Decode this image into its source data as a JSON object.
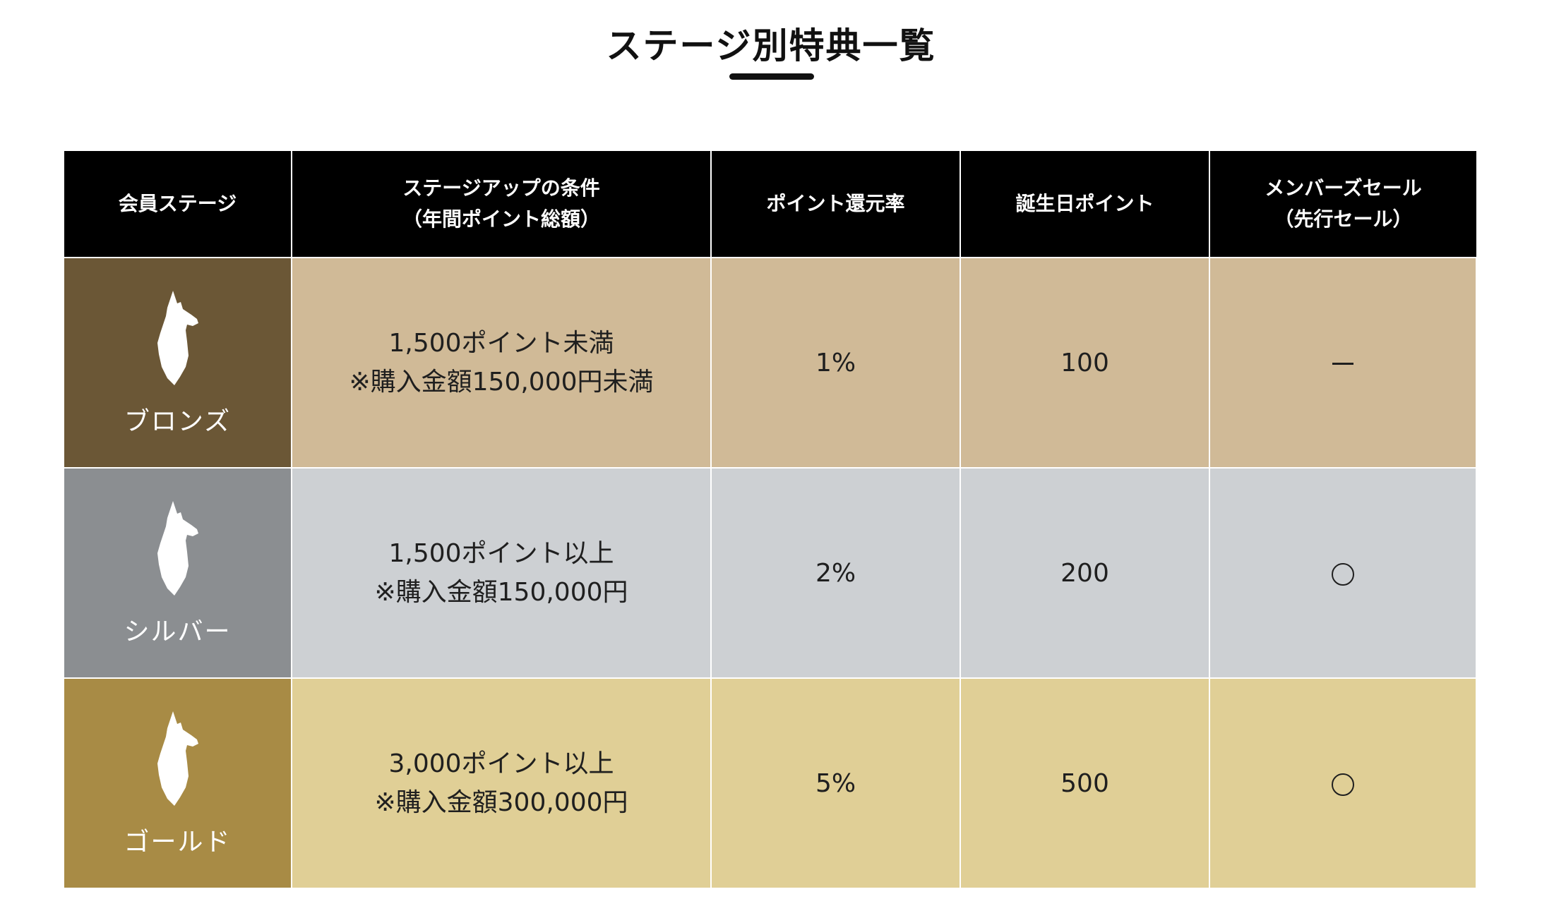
{
  "title": "ステージ別特典一覧",
  "headers": {
    "stage": "会員ステージ",
    "condition_line1": "ステージアップの条件",
    "condition_line2": "（年間ポイント総額）",
    "rate": "ポイント還元率",
    "birthday": "誕生日ポイント",
    "sale_line1": "メンバーズセール",
    "sale_line2": "（先行セール）"
  },
  "rows": [
    {
      "stage": "ブロンズ",
      "icon": "llama-icon",
      "condition_line1": "1,500ポイント未満",
      "condition_line2": "※購入金額150,000円未満",
      "rate": "1%",
      "birthday": "100",
      "sale": "－",
      "sale_mark": "dash",
      "colors": {
        "stage_bg": "#6b5736",
        "cell_bg": "#d0ba97"
      }
    },
    {
      "stage": "シルバー",
      "icon": "llama-icon",
      "condition_line1": "1,500ポイント以上",
      "condition_line2": "※購入金額150,000円",
      "rate": "2%",
      "birthday": "200",
      "sale": "○",
      "sale_mark": "circle",
      "colors": {
        "stage_bg": "#8b8e91",
        "cell_bg": "#cdd0d3"
      }
    },
    {
      "stage": "ゴールド",
      "icon": "llama-icon",
      "condition_line1": "3,000ポイント以上",
      "condition_line2": "※購入金額300,000円",
      "rate": "5%",
      "birthday": "500",
      "sale": "○",
      "sale_mark": "circle",
      "colors": {
        "stage_bg": "#a88b45",
        "cell_bg": "#e0cf96"
      }
    }
  ]
}
